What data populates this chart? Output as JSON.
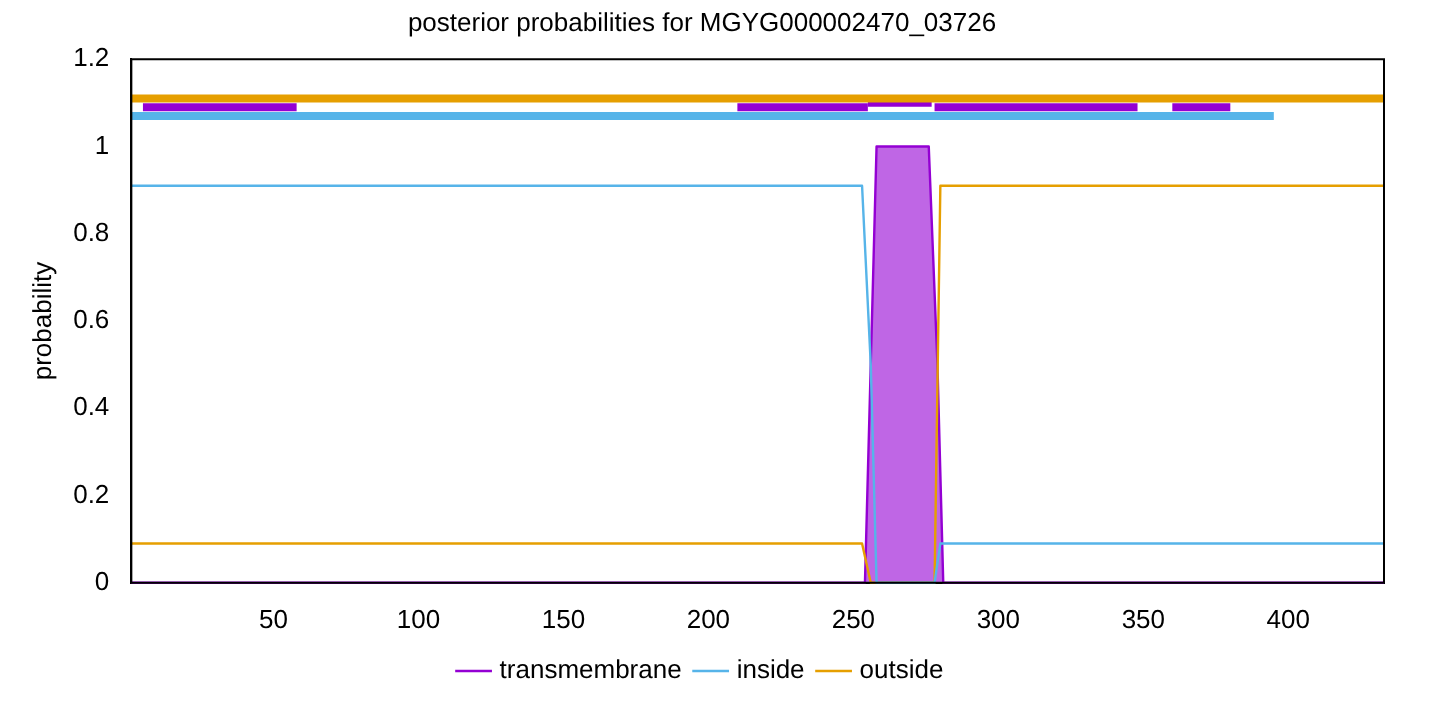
{
  "chart_data": {
    "type": "line",
    "title": "posterior probabilities for MGYG000002470_03726",
    "ylabel": "probability",
    "xlim": [
      1,
      433
    ],
    "xticks": [
      50,
      100,
      150,
      200,
      250,
      300,
      350,
      400
    ],
    "ylim": [
      0,
      1.2
    ],
    "yticks": [
      0,
      0.2,
      0.4,
      0.6,
      0.8,
      1,
      1.2
    ],
    "grid": false,
    "legend": "bottom",
    "marker": "none",
    "line_style": "solid",
    "series": [
      {
        "name": "transmembrane",
        "type": "area",
        "color": "#9400d3",
        "x": [
          1,
          254,
          256,
          258,
          276,
          279,
          281,
          433
        ],
        "values": [
          0,
          0,
          0.5,
          1,
          1,
          0.5,
          0,
          0
        ]
      },
      {
        "name": "inside",
        "color": "#56b4e9",
        "x": [
          1,
          253,
          256,
          258,
          278,
          280,
          433
        ],
        "values": [
          0.91,
          0.91,
          0.5,
          0,
          0,
          0.09,
          0.09
        ]
      },
      {
        "name": "outside",
        "color": "#e69f00",
        "x": [
          1,
          253,
          256,
          278,
          280,
          433
        ],
        "values": [
          0.09,
          0.09,
          0,
          0,
          0.91,
          0.91
        ]
      },
      {
        "color": "#e69f00",
        "x": [
          1,
          433
        ],
        "values": [
          1.11,
          1.11
        ]
      },
      {
        "color": "#56b4e9",
        "x": [
          1,
          395
        ],
        "values": [
          1.07,
          1.07
        ]
      },
      {
        "color": "#9400d3",
        "x": [
          5,
          58
        ],
        "values": [
          1.09,
          1.09
        ]
      },
      {
        "color": "#9400d3",
        "x": [
          210,
          255
        ],
        "values": [
          1.09,
          1.09
        ]
      },
      {
        "color": "#9400d3",
        "x": [
          255,
          277
        ],
        "values": [
          1.1,
          1.1
        ]
      },
      {
        "color": "#9400d3",
        "x": [
          278,
          348
        ],
        "values": [
          1.09,
          1.09
        ]
      },
      {
        "color": "#9400d3",
        "x": [
          360,
          380
        ],
        "values": [
          1.09,
          1.09
        ]
      }
    ]
  }
}
